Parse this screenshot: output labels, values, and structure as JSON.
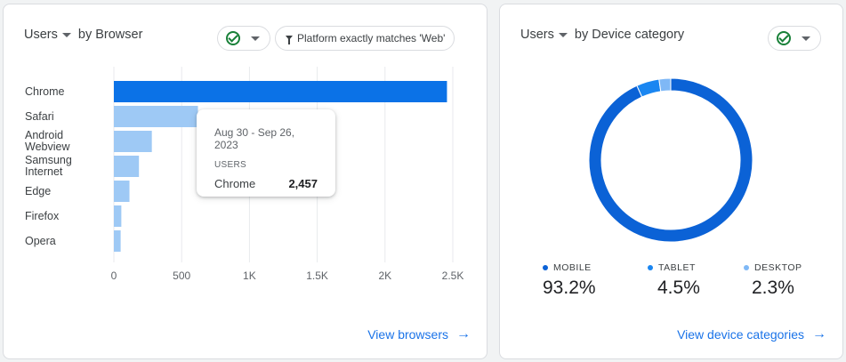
{
  "browser_card": {
    "metric_label": "Users",
    "dimension_label": "by Browser",
    "filter_label": "Platform exactly matches 'Web'",
    "check_icon": "check-circle-icon",
    "view_link": "View browsers",
    "tooltip": {
      "date": "Aug 30 - Sep 26, 2023",
      "metric": "USERS",
      "name": "Chrome",
      "value": "2,457"
    }
  },
  "device_card": {
    "metric_label": "Users",
    "dimension_label": "by Device category",
    "check_icon": "check-circle-icon",
    "view_link": "View device categories",
    "legend": [
      {
        "label": "MOBILE",
        "value": "93.2%",
        "color": "#0b62d6"
      },
      {
        "label": "TABLET",
        "value": "4.5%",
        "color": "#1a86f1"
      },
      {
        "label": "DESKTOP",
        "value": "2.3%",
        "color": "#7fb8f6"
      }
    ]
  },
  "chart_data": [
    {
      "type": "bar",
      "orientation": "horizontal",
      "categories": [
        "Chrome",
        "Safari",
        "Android Webview",
        "Samsung Internet",
        "Edge",
        "Firefox",
        "Opera"
      ],
      "values": [
        2457,
        620,
        280,
        185,
        115,
        55,
        50
      ],
      "xlim": [
        0,
        2500
      ],
      "xticks": [
        "0",
        "500",
        "1K",
        "1.5K",
        "2K",
        "2.5K"
      ],
      "grid": true,
      "colors": {
        "highlight": "#0b72e7",
        "default": "#9ec9f5"
      }
    },
    {
      "type": "pie",
      "style": "donut",
      "categories": [
        "MOBILE",
        "TABLET",
        "DESKTOP"
      ],
      "values": [
        93.2,
        4.5,
        2.3
      ],
      "colors": [
        "#0b62d6",
        "#1a86f1",
        "#7fb8f6"
      ]
    }
  ]
}
